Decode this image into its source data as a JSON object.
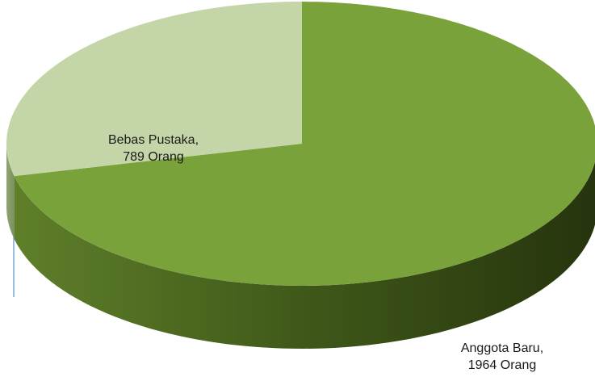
{
  "chart_data": {
    "type": "pie",
    "categories": [
      "Anggota Baru,",
      "Bebas Pustaka,"
    ],
    "values": [
      1964,
      789
    ],
    "value_labels": [
      "1964 Orang",
      "789 Orang"
    ],
    "colors": [
      "#7aa23a",
      "#c4d6a8"
    ]
  }
}
